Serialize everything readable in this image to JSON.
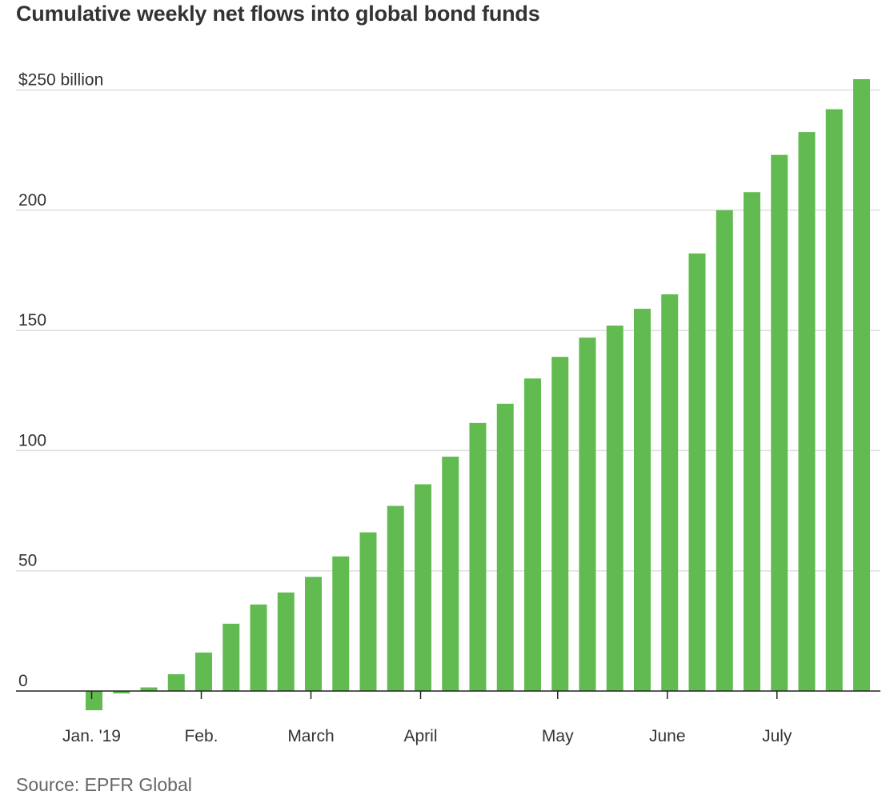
{
  "chart_data": {
    "type": "bar",
    "title": "Cumulative weekly net flows into global bond funds",
    "source": "Source: EPFR Global",
    "ylim": [
      -10,
      255
    ],
    "y_ticks": [
      {
        "value": 250,
        "label": "$250 billion"
      },
      {
        "value": 200,
        "label": "200"
      },
      {
        "value": 150,
        "label": "150"
      },
      {
        "value": 100,
        "label": "100"
      },
      {
        "value": 50,
        "label": "50"
      },
      {
        "value": 0,
        "label": "0"
      }
    ],
    "x_tick_labels": [
      {
        "label": "Jan. '19",
        "bar_index": 0
      },
      {
        "label": "Feb.",
        "bar_index": 4
      },
      {
        "label": "March",
        "bar_index": 8
      },
      {
        "label": "April",
        "bar_index": 12
      },
      {
        "label": "May",
        "bar_index": 17
      },
      {
        "label": "June",
        "bar_index": 21
      },
      {
        "label": "July",
        "bar_index": 25
      }
    ],
    "series": [
      {
        "values": [
          -8,
          -1,
          1.5,
          7,
          16,
          28,
          36,
          41,
          47.5,
          56,
          66,
          77,
          86,
          97.5,
          111.5,
          119.5,
          130,
          139,
          147,
          152,
          159,
          165,
          182,
          200,
          207.5,
          223,
          232.5,
          242,
          254.5
        ]
      }
    ],
    "colors": {
      "bar": "#62bb50",
      "gridline": "#dddddd",
      "baseline": "#222222"
    },
    "grid": true
  }
}
